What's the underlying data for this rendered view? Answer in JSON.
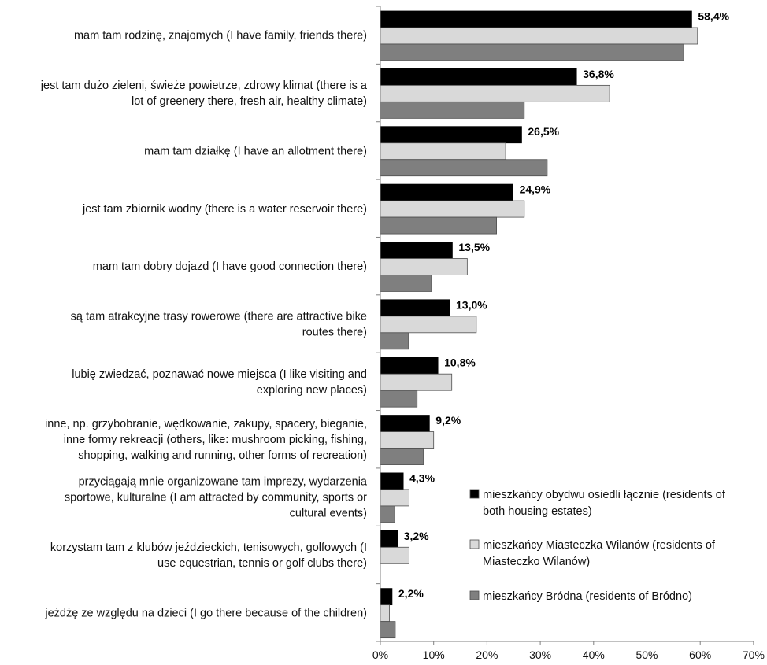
{
  "chart_data": {
    "type": "bar",
    "orientation": "horizontal",
    "categories": [
      [
        "mam tam rodzinę, znajomych (I have family, friends there)"
      ],
      [
        "jest tam dużo zieleni, świeże powietrze, zdrowy klimat (there is a",
        "lot of greenery there, fresh air, healthy climate)"
      ],
      [
        "mam tam działkę (I have an allotment there)"
      ],
      [
        "jest tam zbiornik wodny (there is a water reservoir there)"
      ],
      [
        "mam tam dobry dojazd (I have good connection there)"
      ],
      [
        "są tam atrakcyjne trasy rowerowe (there are attractive bike",
        "routes there)"
      ],
      [
        "lubię zwiedzać, poznawać nowe miejsca (I like visiting and",
        "exploring new places)"
      ],
      [
        "inne, np. grzybobranie, wędkowanie, zakupy, spacery, bieganie,",
        "inne formy rekreacji (others, like: mushroom picking, fishing,",
        "shopping, walking and running, other forms of recreation)"
      ],
      [
        "przyciągają mnie organizowane tam imprezy, wydarzenia",
        "sportowe, kulturalne (I am attracted by community, sports or",
        "cultural events)"
      ],
      [
        "korzystam tam z klubów jeździeckich, tenisowych, golfowych (I",
        "use equestrian, tennis or golf clubs there)"
      ],
      [
        "jeżdżę ze względu na dzieci (I go there because of the children)"
      ]
    ],
    "series": [
      {
        "name": [
          "mieszkańcy obydwu osiedli łącznie (residents of",
          "both housing estates)"
        ],
        "color": "#000000",
        "values": [
          58.4,
          36.8,
          26.5,
          24.9,
          13.5,
          13.0,
          10.8,
          9.2,
          4.3,
          3.2,
          2.2
        ],
        "data_labels": [
          "58,4%",
          "36,8%",
          "26,5%",
          "24,9%",
          "13,5%",
          "13,0%",
          "10,8%",
          "9,2%",
          "4,3%",
          "3,2%",
          "2,2%"
        ]
      },
      {
        "name": [
          "mieszkańcy Miasteczka Wilanów (residents of",
          "Miasteczko Wilanów)"
        ],
        "color": "#d9d9d9",
        "values": [
          59.5,
          43.0,
          23.5,
          27.0,
          16.3,
          18.0,
          13.4,
          10.0,
          5.4,
          5.4,
          1.7
        ]
      },
      {
        "name": [
          "mieszkańcy Bródna (residents of Bródno)"
        ],
        "color": "#7f7f7f",
        "values": [
          56.9,
          27.0,
          31.3,
          21.8,
          9.6,
          5.3,
          6.9,
          8.1,
          2.7,
          0,
          2.8
        ]
      }
    ],
    "xlim": [
      0,
      70
    ],
    "xticks": [
      "0%",
      "10%",
      "20%",
      "30%",
      "40%",
      "50%",
      "60%",
      "70%"
    ],
    "legend_position": "lower-right",
    "grid": false
  }
}
